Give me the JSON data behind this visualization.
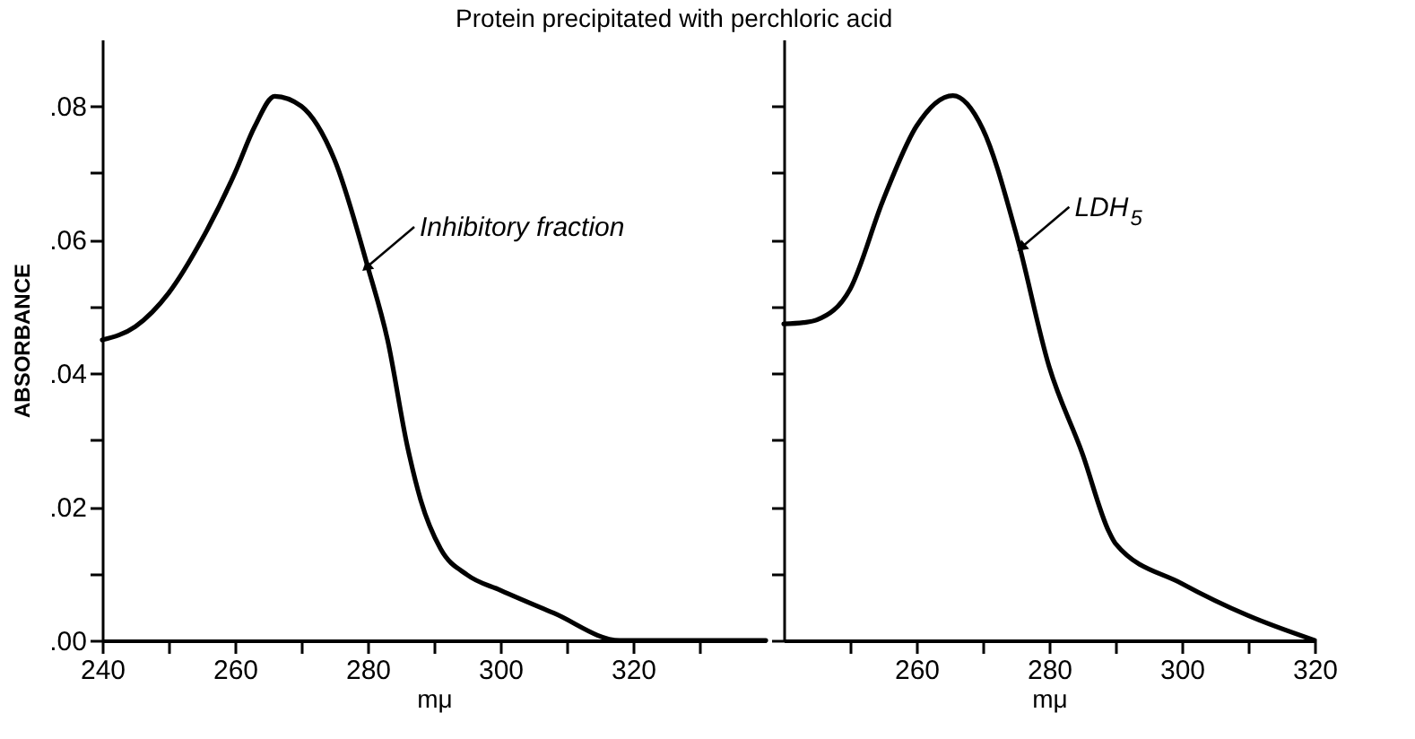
{
  "chart_data": [
    {
      "type": "line",
      "title": "Protein precipitated with perchloric acid",
      "xlabel": "mμ",
      "ylabel": "ABSORBANCE",
      "xlim": [
        240,
        340
      ],
      "xticks": [
        240,
        {
          "value": 250,
          "label": null
        },
        260,
        {
          "value": 270,
          "label": null
        },
        280,
        {
          "value": 290,
          "label": null
        },
        300,
        {
          "value": 310,
          "label": null
        },
        320,
        {
          "value": 330,
          "label": null
        }
      ],
      "ylim": [
        0,
        0.09
      ],
      "yticks": [
        {
          "value": 0,
          "label": ".00"
        },
        {
          "value": 0.01,
          "label": null
        },
        {
          "value": 0.02,
          "label": ".02"
        },
        {
          "value": 0.03,
          "label": null
        },
        {
          "value": 0.04,
          "label": ".04"
        },
        {
          "value": 0.05,
          "label": null
        },
        {
          "value": 0.06,
          "label": ".06"
        },
        {
          "value": 0.07,
          "label": null
        },
        {
          "value": 0.08,
          "label": ".08"
        }
      ],
      "grid": false,
      "marker": "none",
      "line_style": "solid",
      "annotations": [
        {
          "text": "Inhibitory fraction",
          "x": 280,
          "y": 0.056
        }
      ],
      "series": [
        {
          "color": "#000000",
          "x": [
            240,
            245,
            250,
            255,
            260,
            263,
            266,
            270,
            275,
            280,
            283,
            286,
            288,
            291,
            295,
            300,
            308,
            318,
            330,
            340
          ],
          "values": [
            0.045,
            0.047,
            0.052,
            0.06,
            0.07,
            0.077,
            0.0815,
            0.08,
            0.072,
            0.056,
            0.045,
            0.029,
            0.021,
            0.0137,
            0.0098,
            0.0075,
            0.0041,
            0,
            0,
            0
          ]
        }
      ]
    },
    {
      "type": "line",
      "xlabel": "mμ",
      "tick_labels": "x",
      "xlim": [
        240,
        320
      ],
      "xticks": [
        {
          "value": 250,
          "label": null
        },
        260,
        {
          "value": 270,
          "label": null
        },
        280,
        {
          "value": 290,
          "label": null
        },
        300,
        {
          "value": 310,
          "label": null
        },
        320
      ],
      "ylim": [
        0,
        0.09
      ],
      "yticks": [
        0,
        0.01,
        0.02,
        0.03,
        0.04,
        0.05,
        0.06,
        0.07,
        0.08
      ],
      "grid": false,
      "marker": "none",
      "line_style": "solid",
      "annotations": [
        {
          "text": "LDH$_{5}$",
          "x": 276,
          "y": 0.059
        }
      ],
      "series": [
        {
          "color": "#000000",
          "x": [
            240,
            243,
            245,
            250,
            255,
            260,
            265.5,
            270,
            275,
            280,
            285,
            289,
            290,
            300,
            310,
            320
          ],
          "values": [
            0.0474,
            0.0476,
            0.048,
            0.0526,
            0.066,
            0.077,
            0.0816,
            0.0766,
            0.061,
            0.041,
            0.028,
            0.0163,
            0.0145,
            0.0085,
            0.0037,
            0
          ]
        }
      ]
    }
  ]
}
